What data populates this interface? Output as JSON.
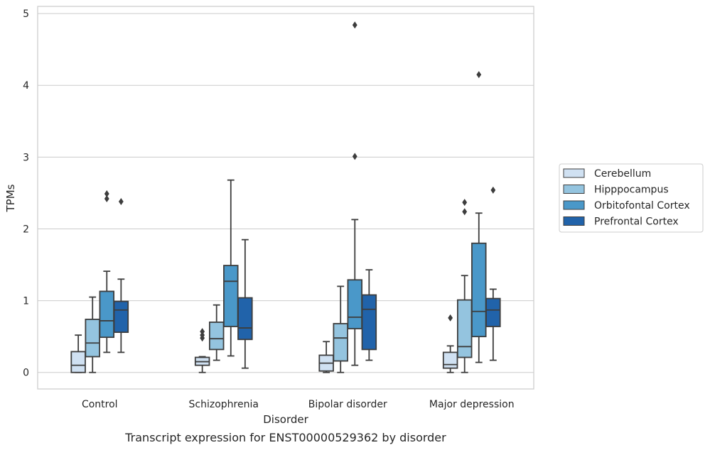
{
  "chart_data": {
    "type": "boxplot",
    "title": "",
    "caption": "Transcript expression for ENST00000529362 by disorder",
    "xlabel": "Disorder",
    "ylabel": "TPMs",
    "ylim": [
      -0.23,
      5.1
    ],
    "yticks": [
      0,
      1,
      2,
      3,
      4,
      5
    ],
    "grid": "horizontal",
    "legend_position": "right",
    "categories": [
      "Control",
      "Schizophrenia",
      "Bipolar disorder",
      "Major depression"
    ],
    "series": [
      {
        "name": "Cerebellum",
        "color": "#d0e1f2",
        "boxes": [
          {
            "whisker_low": 0.0,
            "q1": 0.0,
            "median": 0.1,
            "q3": 0.29,
            "whisker_high": 0.52,
            "outliers": []
          },
          {
            "whisker_low": 0.0,
            "q1": 0.1,
            "median": 0.15,
            "q3": 0.21,
            "whisker_high": 0.22,
            "outliers": [
              0.48,
              0.52,
              0.57
            ]
          },
          {
            "whisker_low": 0.0,
            "q1": 0.02,
            "median": 0.13,
            "q3": 0.24,
            "whisker_high": 0.43,
            "outliers": []
          },
          {
            "whisker_low": 0.0,
            "q1": 0.06,
            "median": 0.11,
            "q3": 0.28,
            "whisker_high": 0.37,
            "outliers": [
              0.76
            ]
          }
        ]
      },
      {
        "name": "Hipppocampus",
        "color": "#94c4df",
        "boxes": [
          {
            "whisker_low": 0.0,
            "q1": 0.22,
            "median": 0.41,
            "q3": 0.74,
            "whisker_high": 1.05,
            "outliers": []
          },
          {
            "whisker_low": 0.17,
            "q1": 0.32,
            "median": 0.47,
            "q3": 0.7,
            "whisker_high": 0.94,
            "outliers": []
          },
          {
            "whisker_low": 0.0,
            "q1": 0.16,
            "median": 0.48,
            "q3": 0.68,
            "whisker_high": 1.2,
            "outliers": []
          },
          {
            "whisker_low": 0.0,
            "q1": 0.21,
            "median": 0.36,
            "q3": 1.01,
            "whisker_high": 1.35,
            "outliers": [
              2.24,
              2.37
            ]
          }
        ]
      },
      {
        "name": "Orbitofontal Cortex",
        "color": "#4a98c9",
        "boxes": [
          {
            "whisker_low": 0.28,
            "q1": 0.49,
            "median": 0.72,
            "q3": 1.13,
            "whisker_high": 1.41,
            "outliers": [
              2.42,
              2.49
            ]
          },
          {
            "whisker_low": 0.23,
            "q1": 0.64,
            "median": 1.27,
            "q3": 1.49,
            "whisker_high": 2.68,
            "outliers": []
          },
          {
            "whisker_low": 0.1,
            "q1": 0.61,
            "median": 0.77,
            "q3": 1.29,
            "whisker_high": 2.13,
            "outliers": [
              3.01,
              4.84
            ]
          },
          {
            "whisker_low": 0.14,
            "q1": 0.5,
            "median": 0.85,
            "q3": 1.8,
            "whisker_high": 2.22,
            "outliers": [
              4.15
            ]
          }
        ]
      },
      {
        "name": "Prefrontal Cortex",
        "color": "#2163aa",
        "boxes": [
          {
            "whisker_low": 0.28,
            "q1": 0.56,
            "median": 0.87,
            "q3": 0.99,
            "whisker_high": 1.3,
            "outliers": [
              2.38
            ]
          },
          {
            "whisker_low": 0.06,
            "q1": 0.46,
            "median": 0.62,
            "q3": 1.04,
            "whisker_high": 1.85,
            "outliers": []
          },
          {
            "whisker_low": 0.17,
            "q1": 0.32,
            "median": 0.88,
            "q3": 1.08,
            "whisker_high": 1.43,
            "outliers": []
          },
          {
            "whisker_low": 0.17,
            "q1": 0.64,
            "median": 0.87,
            "q3": 1.03,
            "whisker_high": 1.16,
            "outliers": [
              2.54
            ]
          }
        ]
      }
    ]
  }
}
